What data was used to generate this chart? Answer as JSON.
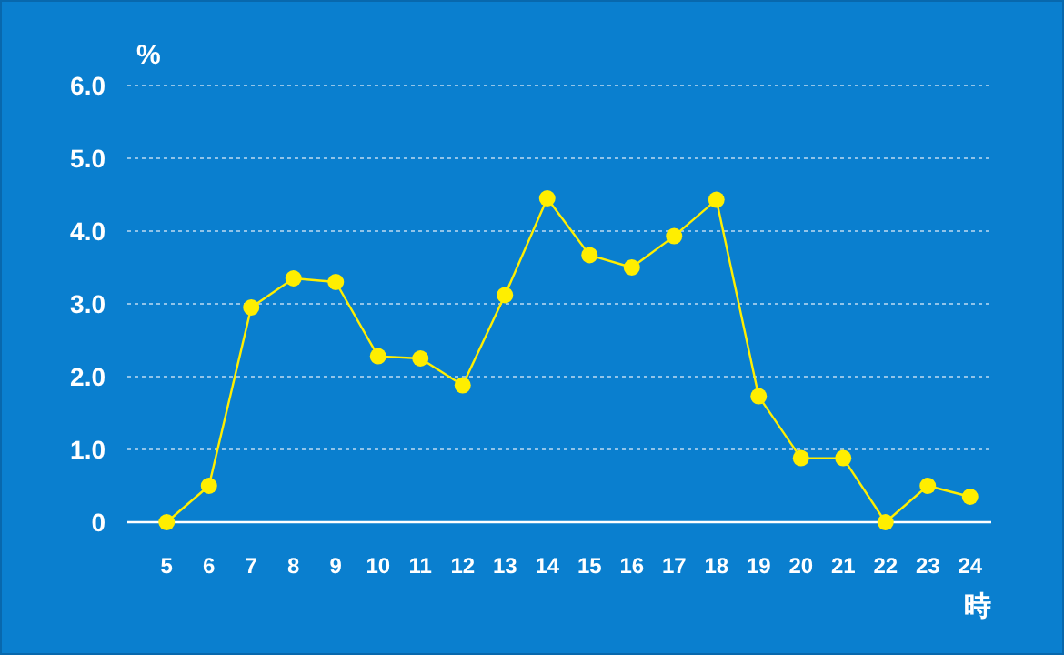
{
  "chart_data": {
    "type": "line",
    "xlabel": "時",
    "ylabel": "%",
    "categories": [
      "5",
      "6",
      "7",
      "8",
      "9",
      "10",
      "11",
      "12",
      "13",
      "14",
      "15",
      "16",
      "17",
      "18",
      "19",
      "20",
      "21",
      "22",
      "23",
      "24"
    ],
    "series": [
      {
        "color": "#ffee00",
        "values": [
          0,
          0.5,
          2.95,
          3.35,
          3.3,
          2.28,
          2.25,
          1.88,
          3.12,
          4.45,
          3.67,
          3.5,
          3.93,
          4.43,
          1.73,
          0.88,
          0.88,
          0,
          0.5,
          0.35
        ]
      }
    ],
    "ylim": [
      0,
      6
    ],
    "yticks": [
      0,
      {
        "value": 1,
        "label": "1.0"
      },
      {
        "value": 2,
        "label": "2.0"
      },
      {
        "value": 3,
        "label": "3.0"
      },
      {
        "value": 4,
        "label": "4.0"
      },
      {
        "value": 5,
        "label": "5.0"
      },
      {
        "value": 6,
        "label": "6.0"
      }
    ],
    "grid": "y",
    "marker": "circle",
    "line_style": "solid"
  }
}
